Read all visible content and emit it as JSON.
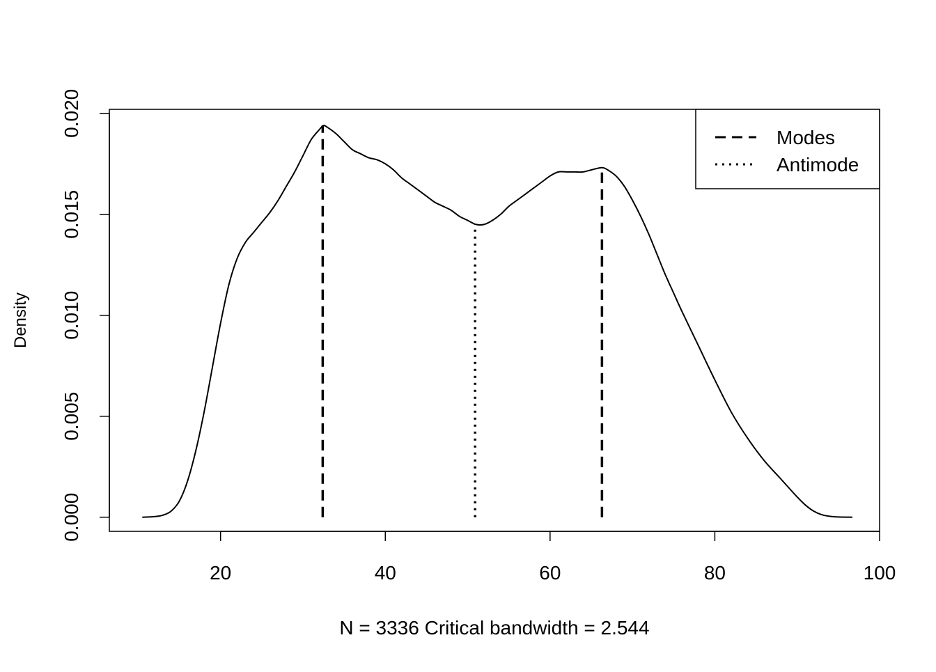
{
  "chart_data": {
    "type": "line",
    "title": "",
    "xlabel": "N =  3336  Critical bandwidth =  2.544",
    "ylabel": "Density",
    "xlim": [
      6.5,
      100
    ],
    "ylim": [
      -0.0007,
      0.0202
    ],
    "x_ticks": [
      20,
      40,
      60,
      80,
      100
    ],
    "y_ticks": [
      0.0,
      0.005,
      0.01,
      0.015,
      0.02
    ],
    "x_tick_labels": [
      "20",
      "40",
      "60",
      "80",
      "100"
    ],
    "y_tick_labels": [
      "0.000",
      "0.005",
      "0.010",
      "0.015",
      "0.020"
    ],
    "grid": false,
    "legend_position": "top-right",
    "legend": [
      {
        "label": "Modes",
        "style": "dashed"
      },
      {
        "label": "Antimode",
        "style": "dotted"
      }
    ],
    "series": [
      {
        "style": "solid",
        "color": "#000000",
        "x": [
          10.5,
          12,
          13,
          14,
          15,
          16,
          17,
          18,
          19,
          20,
          21,
          22,
          23,
          24,
          25,
          26,
          27,
          28,
          29,
          30,
          31,
          32,
          32.5,
          33,
          34,
          35,
          36,
          37,
          38,
          39,
          40,
          41,
          42,
          43,
          44,
          45,
          46,
          47,
          48,
          49,
          50,
          51,
          52,
          53,
          54,
          55,
          56,
          57,
          58,
          59,
          60,
          61,
          62,
          63,
          64,
          65,
          66,
          66.5,
          67,
          68,
          69,
          70,
          71,
          72,
          73,
          74,
          75,
          76,
          78,
          80,
          82,
          84,
          86,
          88,
          90,
          91,
          92,
          93,
          94,
          95,
          96.7
        ],
        "y": [
          0.0,
          3e-05,
          0.0001,
          0.0003,
          0.0008,
          0.0018,
          0.0033,
          0.0052,
          0.0074,
          0.0096,
          0.0115,
          0.0128,
          0.0136,
          0.0141,
          0.0146,
          0.0151,
          0.0157,
          0.0164,
          0.0171,
          0.0179,
          0.0187,
          0.0192,
          0.0194,
          0.0193,
          0.019,
          0.0186,
          0.0182,
          0.018,
          0.0178,
          0.0177,
          0.0175,
          0.0172,
          0.0168,
          0.0165,
          0.0162,
          0.0159,
          0.0156,
          0.0154,
          0.0152,
          0.0149,
          0.0147,
          0.0145,
          0.0145,
          0.0147,
          0.015,
          0.0154,
          0.0157,
          0.016,
          0.0163,
          0.0166,
          0.0169,
          0.0171,
          0.0171,
          0.0171,
          0.0171,
          0.0172,
          0.0173,
          0.0173,
          0.0172,
          0.0169,
          0.0164,
          0.0157,
          0.0149,
          0.014,
          0.013,
          0.012,
          0.0111,
          0.0102,
          0.0085,
          0.0068,
          0.0052,
          0.0039,
          0.0028,
          0.0019,
          0.001,
          0.0006,
          0.0003,
          0.00012,
          4e-05,
          1e-05,
          0.0
        ]
      }
    ],
    "modes": [
      32.4,
      66.3
    ],
    "mode_densities": [
      0.0194,
      0.0173
    ],
    "antimode": 50.9,
    "antimode_density": 0.0145
  }
}
